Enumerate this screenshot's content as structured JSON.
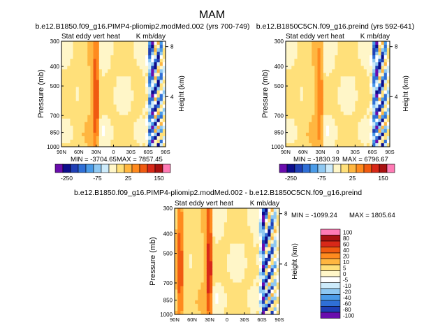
{
  "figure": {
    "title": "MAM"
  },
  "colors": {
    "palette": [
      "#6a0dad",
      "#0d0d8c",
      "#1f3fb5",
      "#2f6fd6",
      "#4a9be8",
      "#8ec8f2",
      "#cdebfb",
      "#ffffff",
      "#fff6c8",
      "#ffe07a",
      "#ffb640",
      "#ff8a1e",
      "#f05a10",
      "#d82818",
      "#a81010",
      "#ff7ab4"
    ],
    "background": "#ffffff",
    "frame": "#000000"
  },
  "chart_data": [
    {
      "type": "heatmap",
      "title": "b.e12.B1850.f09_g16.PIMP4-pliomip2.modMed.002 (yrs 700-749)",
      "subtitle_left": "Stat eddy vert heat",
      "subtitle_right": "K mb/day",
      "xlabel": "",
      "ylabel": "Pressure (mb)",
      "ylabel_right": "Height (km)",
      "x_ticks": [
        "90N",
        "60N",
        "30N",
        "0",
        "30S",
        "60S",
        "90S"
      ],
      "y_ticks": [
        "300",
        "400",
        "500",
        "700",
        "850",
        "1000"
      ],
      "height_ticks": [
        "8",
        "4"
      ],
      "min_label": "MIN = -3704.65",
      "max_label": "MAX = 7857.45",
      "colorbar_labels": [
        "-250",
        "-75",
        "25",
        "150"
      ],
      "features": [
        {
          "lat": 30,
          "sign": "positive",
          "strength": 0.75
        },
        {
          "lat": -75,
          "sign": "mixed",
          "strength": 1.0
        }
      ]
    },
    {
      "type": "heatmap",
      "title": "b.e12.B1850C5CN.f09_g16.preind (yrs 592-641)",
      "subtitle_left": "Stat eddy vert heat",
      "subtitle_right": "K mb/day",
      "xlabel": "",
      "ylabel": "Pressure (mb)",
      "ylabel_right": "Height (km)",
      "x_ticks": [
        "90N",
        "60N",
        "30N",
        "0",
        "30S",
        "60S",
        "90S"
      ],
      "y_ticks": [
        "300",
        "400",
        "500",
        "700",
        "850",
        "1000"
      ],
      "height_ticks": [
        "8",
        "4"
      ],
      "min_label": "MIN = -1830.39",
      "max_label": "MAX = 6796.67",
      "colorbar_labels": [
        "-250",
        "-75",
        "25",
        "150"
      ],
      "features": [
        {
          "lat": 30,
          "sign": "positive",
          "strength": 0.45
        },
        {
          "lat": -75,
          "sign": "mixed",
          "strength": 1.0
        }
      ]
    },
    {
      "type": "heatmap",
      "title": "b.e12.B1850.f09_g16.PIMP4-pliomip2.modMed.002 - b.e12.B1850C5CN.f09_g16.preind",
      "subtitle_left": "Stat eddy vert heat",
      "subtitle_right": "K mb/day",
      "xlabel": "",
      "ylabel": "Pressure (mb)",
      "ylabel_right": "Height (km)",
      "x_ticks": [
        "90N",
        "60N",
        "30N",
        "0",
        "30S",
        "60S",
        "90S"
      ],
      "y_ticks": [
        "300",
        "400",
        "500",
        "700",
        "850",
        "1000"
      ],
      "height_ticks": [
        "8",
        "4"
      ],
      "min_label": "MIN = -1099.24",
      "max_label": "MAX = 1805.64",
      "colorbar_labels": [
        "100",
        "80",
        "60",
        "40",
        "20",
        "10",
        "5",
        "0",
        "-5",
        "-10",
        "-20",
        "-40",
        "-60",
        "-80",
        "-100"
      ],
      "features": [
        {
          "lat": 30,
          "sign": "positive",
          "strength": 0.9
        },
        {
          "lat": 80,
          "sign": "positive",
          "strength": 0.7
        },
        {
          "lat": -72,
          "sign": "mixed",
          "strength": 1.0
        }
      ]
    }
  ]
}
